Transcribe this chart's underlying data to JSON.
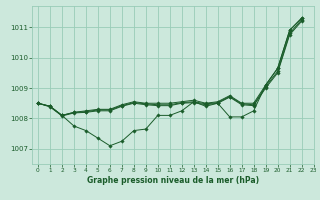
{
  "background_color": "#cce8dc",
  "grid_color": "#99ccb8",
  "line_color": "#1a5c2a",
  "marker_color": "#1a5c2a",
  "xlabel": "Graphe pression niveau de la mer (hPa)",
  "ylim": [
    1006.5,
    1011.7
  ],
  "xlim": [
    -0.5,
    23
  ],
  "yticks": [
    1007,
    1008,
    1009,
    1010,
    1011
  ],
  "xticks": [
    0,
    1,
    2,
    3,
    4,
    5,
    6,
    7,
    8,
    9,
    10,
    11,
    12,
    13,
    14,
    15,
    16,
    17,
    18,
    19,
    20,
    21,
    22,
    23
  ],
  "lines": [
    [
      1008.5,
      1008.4,
      1008.1,
      1007.75,
      1007.6,
      1007.35,
      1007.1,
      1007.25,
      1007.6,
      1007.65,
      1008.1,
      1008.1,
      1008.25,
      1008.55,
      1008.4,
      1008.5,
      1008.05,
      1008.05,
      1008.25,
      1009.1,
      1009.65,
      1010.9,
      1011.3
    ],
    [
      1008.5,
      1008.4,
      1008.1,
      1008.2,
      1008.25,
      1008.3,
      1008.3,
      1008.45,
      1008.55,
      1008.5,
      1008.5,
      1008.5,
      1008.55,
      1008.6,
      1008.5,
      1008.55,
      1008.75,
      1008.5,
      1008.5,
      1009.1,
      1009.65,
      1010.9,
      1011.3
    ],
    [
      1008.5,
      1008.4,
      1008.1,
      1008.2,
      1008.22,
      1008.28,
      1008.28,
      1008.42,
      1008.52,
      1008.48,
      1008.45,
      1008.45,
      1008.52,
      1008.55,
      1008.48,
      1008.52,
      1008.72,
      1008.48,
      1008.45,
      1009.05,
      1009.55,
      1010.8,
      1011.25
    ],
    [
      1008.5,
      1008.38,
      1008.08,
      1008.18,
      1008.2,
      1008.25,
      1008.25,
      1008.4,
      1008.5,
      1008.45,
      1008.42,
      1008.42,
      1008.5,
      1008.52,
      1008.45,
      1008.5,
      1008.7,
      1008.45,
      1008.42,
      1009.0,
      1009.5,
      1010.75,
      1011.2
    ]
  ],
  "x_values": [
    0,
    1,
    2,
    3,
    4,
    5,
    6,
    7,
    8,
    9,
    10,
    11,
    12,
    13,
    14,
    15,
    16,
    17,
    18,
    19,
    20,
    21,
    22
  ]
}
